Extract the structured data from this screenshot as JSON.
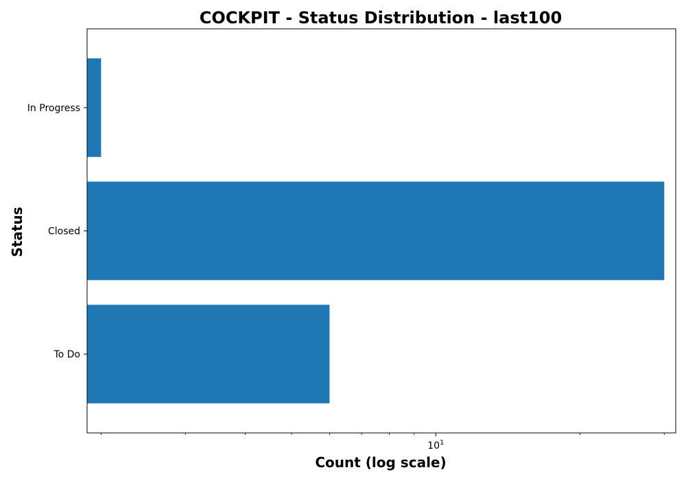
{
  "chart_data": {
    "type": "bar",
    "orientation": "horizontal",
    "title": "COCKPIT - Status Distribution - last100",
    "xlabel": "Count (log scale)",
    "ylabel": "Status",
    "x_scale": "log",
    "xlim": [
      1.87,
      31.7
    ],
    "x_tick_labels": [
      {
        "value": 10,
        "base": "10",
        "exp": "1"
      }
    ],
    "x_minor_ticks": [
      2,
      3,
      4,
      5,
      6,
      7,
      8,
      9,
      20,
      30
    ],
    "categories": [
      "To Do",
      "Closed",
      "In Progress"
    ],
    "values": [
      6,
      30,
      2
    ],
    "color": "#1f77b4",
    "grid": false,
    "legend": "none"
  }
}
